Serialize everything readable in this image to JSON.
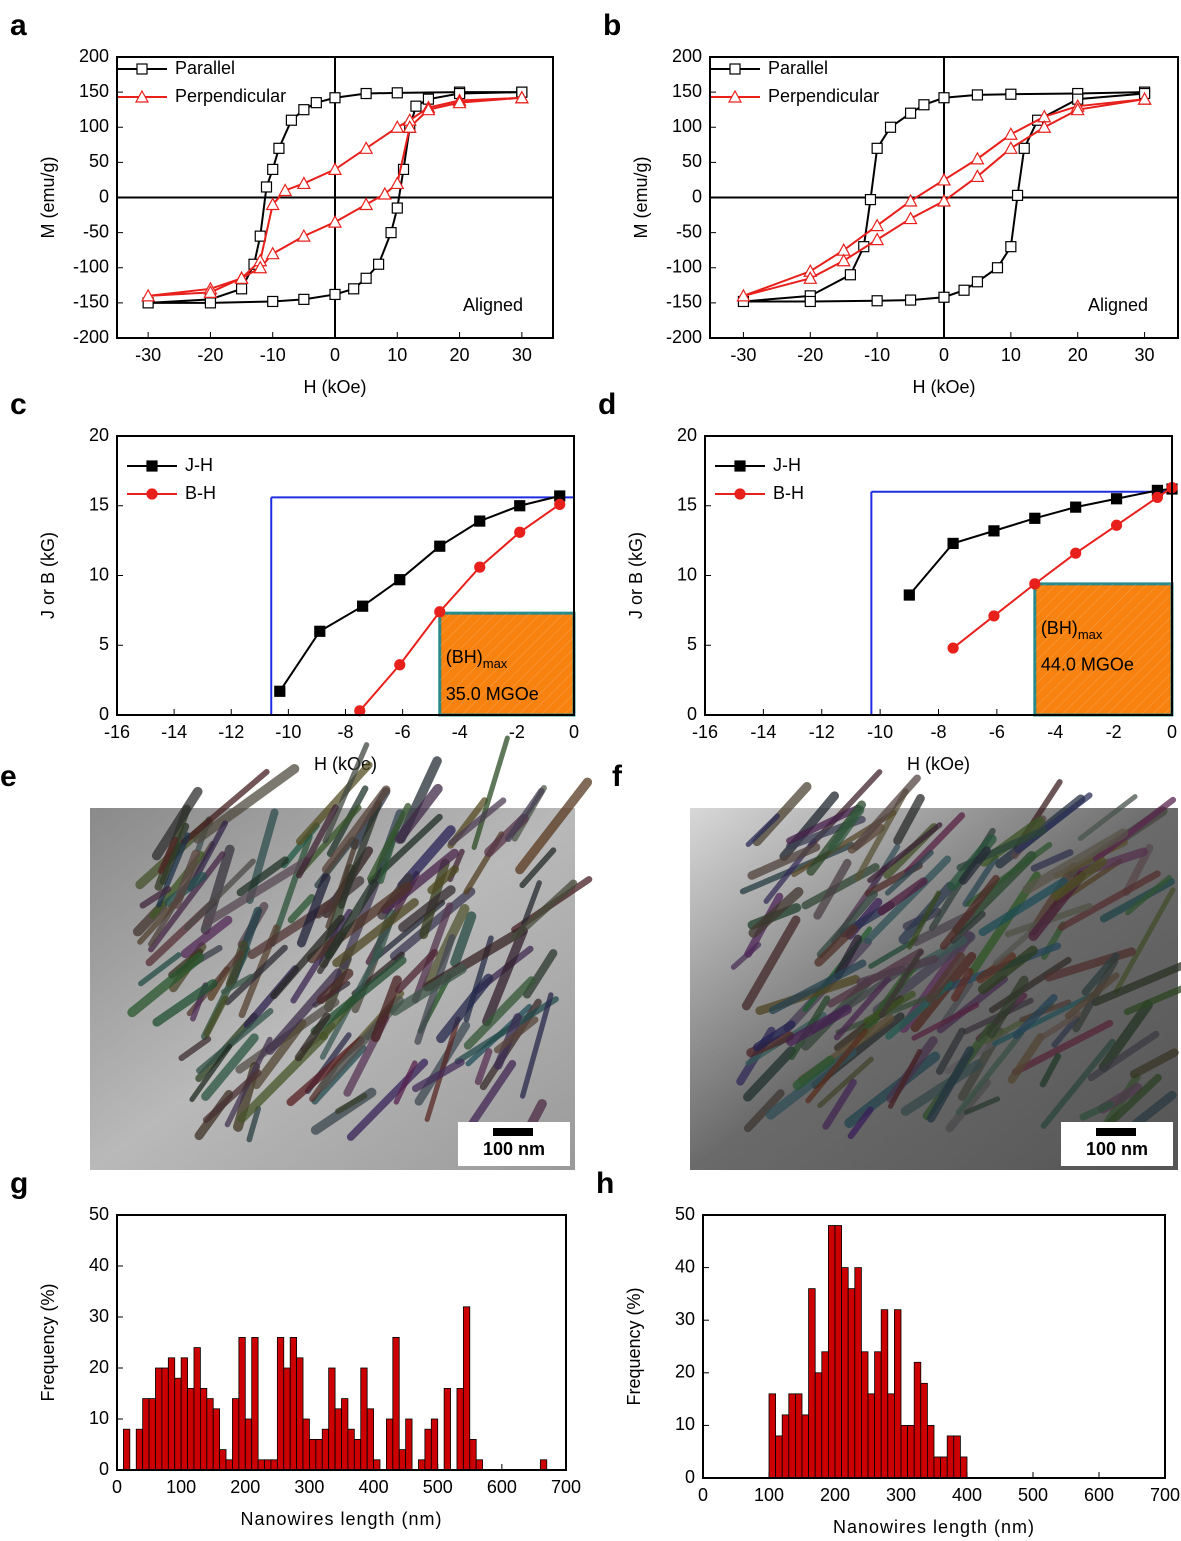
{
  "chart_data": [
    {
      "type": "line",
      "label": "a",
      "xlabel": "H (kOe)",
      "ylabel": "M (emu/g)",
      "annotation": "Aligned",
      "xlim": [
        -35,
        35
      ],
      "xticks": [
        -30,
        -20,
        -10,
        0,
        10,
        20,
        30
      ],
      "ylim": [
        -200,
        200
      ],
      "yticks": [
        -200,
        -150,
        -100,
        -50,
        0,
        50,
        100,
        150,
        200
      ],
      "zero_lines": true,
      "series": [
        {
          "name": "Parallel",
          "color": "#000000",
          "marker": "open-square",
          "x": [
            30,
            20,
            10,
            5,
            0,
            -3,
            -5,
            -7,
            -9,
            -10,
            -11,
            -12,
            -13,
            -15,
            -20,
            -30,
            -20,
            -10,
            -5,
            0,
            3,
            5,
            7,
            9,
            10,
            11,
            12,
            13,
            15,
            20,
            30
          ],
          "values": [
            150,
            150,
            149,
            148,
            142,
            135,
            125,
            110,
            70,
            40,
            15,
            -55,
            -95,
            -130,
            -145,
            -150,
            -150,
            -148,
            -145,
            -138,
            -130,
            -115,
            -95,
            -50,
            -15,
            40,
            100,
            130,
            140,
            148,
            150
          ]
        },
        {
          "name": "Perpendicular",
          "color": "#e8201c",
          "marker": "open-triangle",
          "x": [
            30,
            20,
            15,
            12,
            10,
            5,
            0,
            -5,
            -8,
            -10,
            -12,
            -15,
            -20,
            -30,
            -20,
            -15,
            -12,
            -10,
            -5,
            0,
            5,
            8,
            10,
            12,
            15,
            20,
            30
          ],
          "values": [
            142,
            138,
            128,
            110,
            100,
            70,
            40,
            20,
            10,
            -10,
            -90,
            -115,
            -130,
            -140,
            -135,
            -115,
            -100,
            -80,
            -55,
            -35,
            -10,
            5,
            20,
            100,
            125,
            135,
            142
          ]
        }
      ]
    },
    {
      "type": "line",
      "label": "b",
      "xlabel": "H (kOe)",
      "ylabel": "M (emu/g)",
      "annotation": "Aligned",
      "xlim": [
        -35,
        35
      ],
      "xticks": [
        -30,
        -20,
        -10,
        0,
        10,
        20,
        30
      ],
      "ylim": [
        -200,
        200
      ],
      "yticks": [
        -200,
        -150,
        -100,
        -50,
        0,
        50,
        100,
        150,
        200
      ],
      "zero_lines": true,
      "series": [
        {
          "name": "Parallel",
          "color": "#000000",
          "marker": "open-square",
          "x": [
            30,
            20,
            10,
            5,
            0,
            -3,
            -5,
            -8,
            -10,
            -11,
            -12,
            -14,
            -20,
            -30,
            -20,
            -10,
            -5,
            0,
            3,
            5,
            8,
            10,
            11,
            12,
            14,
            20,
            30
          ],
          "values": [
            150,
            148,
            147,
            146,
            142,
            132,
            120,
            100,
            70,
            -3,
            -70,
            -110,
            -140,
            -148,
            -148,
            -147,
            -146,
            -142,
            -132,
            -120,
            -100,
            -70,
            3,
            70,
            110,
            140,
            148
          ]
        },
        {
          "name": "Perpendicular",
          "color": "#e8201c",
          "marker": "open-triangle",
          "x": [
            30,
            20,
            15,
            10,
            5,
            0,
            -5,
            -10,
            -15,
            -20,
            -30,
            -20,
            -15,
            -10,
            -5,
            0,
            5,
            10,
            15,
            20,
            30
          ],
          "values": [
            140,
            130,
            115,
            90,
            55,
            25,
            -5,
            -40,
            -75,
            -105,
            -140,
            -115,
            -90,
            -60,
            -30,
            -5,
            30,
            70,
            100,
            125,
            140
          ]
        }
      ]
    },
    {
      "type": "line",
      "label": "c",
      "xlabel": "H (kOe)",
      "ylabel": "J or B (kG)",
      "annotation_main": "(BH)",
      "annotation_sub": "max",
      "annotation_value": "35.0 MGOe",
      "xlim": [
        -16,
        0
      ],
      "xticks": [
        -16,
        -14,
        -12,
        -10,
        -8,
        -6,
        -4,
        -2,
        0
      ],
      "ylim": [
        0,
        20
      ],
      "yticks": [
        0,
        5,
        10,
        15,
        20
      ],
      "guide": {
        "x": -10.6,
        "y": 15.6,
        "color": "#1f2de0"
      },
      "product_box": {
        "x": [
          -4.7,
          0
        ],
        "y": [
          0,
          7.3
        ],
        "color": "#f7820f",
        "edge": "#2a8a8a"
      },
      "series": [
        {
          "name": "J-H",
          "color": "#000000",
          "marker": "filled-square",
          "x": [
            -10.3,
            -8.9,
            -7.4,
            -6.1,
            -4.7,
            -3.3,
            -1.9,
            -0.5
          ],
          "values": [
            1.7,
            6.0,
            7.8,
            9.7,
            12.1,
            13.9,
            15.0,
            15.7
          ]
        },
        {
          "name": "B-H",
          "color": "#e8201c",
          "marker": "filled-circle",
          "x": [
            -7.5,
            -6.1,
            -4.7,
            -3.3,
            -1.9,
            -0.5
          ],
          "values": [
            0.3,
            3.6,
            7.4,
            10.6,
            13.1,
            15.1
          ]
        }
      ]
    },
    {
      "type": "line",
      "label": "d",
      "xlabel": "H (kOe)",
      "ylabel": "J or B (kG)",
      "annotation_main": "(BH)",
      "annotation_sub": "max",
      "annotation_value": "44.0 MGOe",
      "xlim": [
        -16,
        0
      ],
      "xticks": [
        -16,
        -14,
        -12,
        -10,
        -8,
        -6,
        -4,
        -2,
        0
      ],
      "ylim": [
        0,
        20
      ],
      "yticks": [
        0,
        5,
        10,
        15,
        20
      ],
      "guide": {
        "x": -10.3,
        "y": 16.0,
        "color": "#1f2de0"
      },
      "product_box": {
        "x": [
          -4.7,
          0
        ],
        "y": [
          0,
          9.4
        ],
        "color": "#f7820f",
        "edge": "#2a8a8a"
      },
      "series": [
        {
          "name": "J-H",
          "color": "#000000",
          "marker": "filled-square",
          "x": [
            -9.0,
            -7.5,
            -6.1,
            -4.7,
            -3.3,
            -1.9,
            -0.5,
            0
          ],
          "values": [
            8.6,
            12.3,
            13.2,
            14.1,
            14.9,
            15.5,
            16.1,
            16.2
          ]
        },
        {
          "name": "B-H",
          "color": "#e8201c",
          "marker": "filled-circle",
          "x": [
            -7.5,
            -6.1,
            -4.7,
            -3.3,
            -1.9,
            -0.5,
            0
          ],
          "values": [
            4.8,
            7.1,
            9.4,
            11.6,
            13.6,
            15.6,
            16.3
          ]
        }
      ]
    },
    {
      "type": "histogram",
      "label": "g",
      "xlabel": "Nanowires length (nm)",
      "ylabel": "Frequency (%)",
      "color": "#cc0000",
      "xlim": [
        0,
        700
      ],
      "xticks": [
        0,
        100,
        200,
        300,
        400,
        500,
        600,
        700
      ],
      "ylim": [
        0,
        50
      ],
      "yticks": [
        0,
        10,
        20,
        30,
        40,
        50
      ],
      "bins": [
        10,
        20,
        30,
        40,
        50,
        60,
        70,
        80,
        90,
        100,
        110,
        120,
        130,
        140,
        150,
        160,
        170,
        180,
        190,
        200,
        210,
        220,
        230,
        240,
        250,
        260,
        270,
        280,
        290,
        300,
        310,
        320,
        330,
        340,
        350,
        360,
        370,
        380,
        390,
        400,
        410,
        420,
        430,
        440,
        450,
        460,
        470,
        480,
        490,
        500,
        510,
        520,
        530,
        540,
        550,
        560,
        570,
        580,
        590,
        600,
        610,
        620,
        630,
        640,
        650,
        660,
        670
      ],
      "values": [
        8,
        0,
        8,
        14,
        14,
        20,
        20,
        22,
        18,
        22,
        16,
        24,
        16,
        14,
        12,
        4,
        2,
        14,
        26,
        10,
        26,
        2,
        2,
        2,
        26,
        20,
        26,
        22,
        10,
        6,
        6,
        8,
        20,
        12,
        14,
        8,
        6,
        20,
        12,
        2,
        0,
        10,
        26,
        4,
        10,
        0,
        2,
        8,
        10,
        0,
        16,
        0,
        16,
        32,
        6,
        2,
        0,
        0,
        0,
        0,
        0,
        0,
        0,
        0,
        0,
        2
      ]
    },
    {
      "type": "histogram",
      "label": "h",
      "xlabel": "Nanowires length (nm)",
      "ylabel": "Frequency (%)",
      "color": "#cc0000",
      "xlim": [
        0,
        700
      ],
      "xticks": [
        0,
        100,
        200,
        300,
        400,
        500,
        600,
        700
      ],
      "ylim": [
        0,
        50
      ],
      "yticks": [
        0,
        10,
        20,
        30,
        40,
        50
      ],
      "bins": [
        100,
        110,
        120,
        130,
        140,
        150,
        160,
        170,
        180,
        190,
        200,
        210,
        220,
        230,
        240,
        250,
        260,
        270,
        280,
        290,
        300,
        310,
        320,
        330,
        340,
        350,
        360,
        370,
        380,
        390,
        400
      ],
      "values": [
        16,
        8,
        12,
        16,
        16,
        12,
        36,
        20,
        24,
        48,
        48,
        40,
        36,
        40,
        24,
        16,
        24,
        32,
        16,
        32,
        10,
        10,
        22,
        18,
        10,
        4,
        4,
        8,
        8,
        4
      ]
    }
  ],
  "images": [
    {
      "label": "e",
      "scale_bar": "100 nm"
    },
    {
      "label": "f",
      "scale_bar": "100 nm"
    }
  ]
}
